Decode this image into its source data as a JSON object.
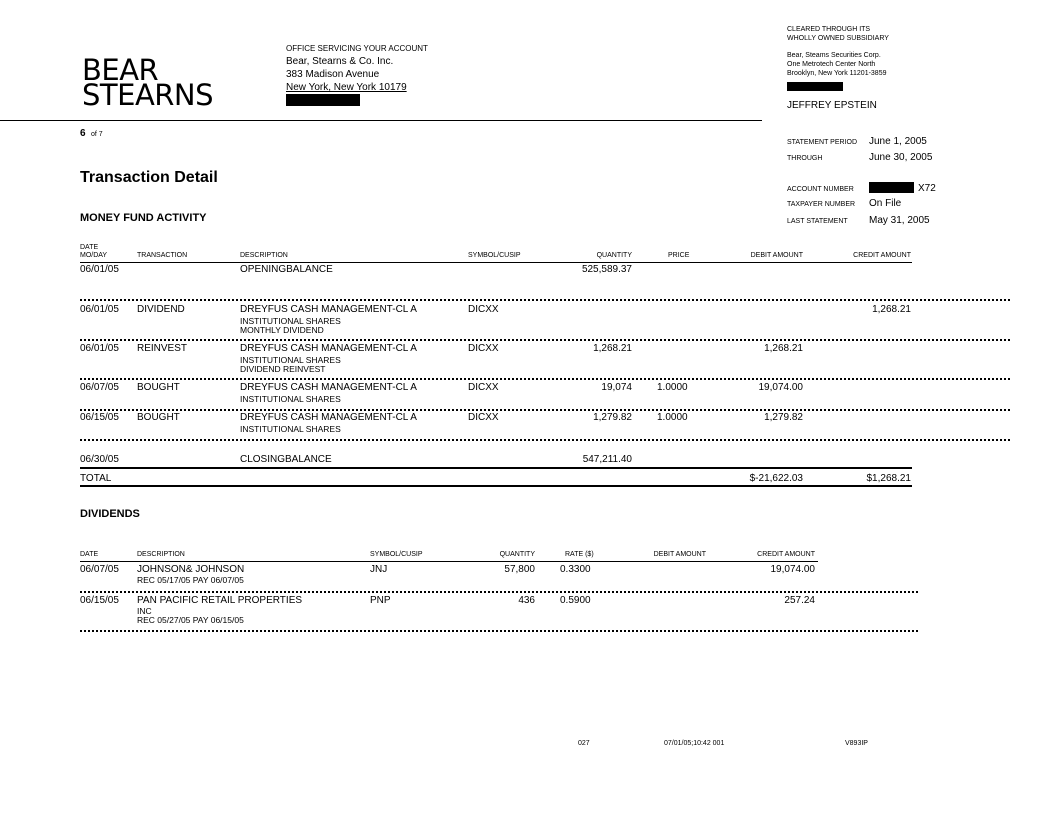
{
  "header": {
    "logo": "BEAR STEARNS",
    "office_title": "OFFICE SERVICING YOUR ACCOUNT",
    "office_lines": [
      "Bear, Stearns & Co. Inc.",
      "383 Madison Avenue",
      "New York, New York  10179"
    ],
    "cleared_lines": [
      "CLEARED  THROUGH  ITS",
      "WHOLLY  OWNED  SUBSIDIARY"
    ],
    "sub_lines": [
      "Bear, Steams Securities Corp.",
      "One Metrotech Center North",
      "Brooklyn,  New York 11201-3859"
    ],
    "client_name": "JEFFREY EPSTEIN",
    "page_num": "6",
    "page_of": "of 7",
    "statement_period_label": "STATEMENT  PERIOD",
    "statement_period": "June 1, 2005",
    "through_label": "THROUGH",
    "through": "June 30, 2005",
    "account_label": "ACCOUNT  NUMBER",
    "account_suffix": "X72",
    "taxpayer_label": "TAXPAYER  NUMBER",
    "taxpayer": "On File",
    "last_statement_label": "LAST  STATEMENT",
    "last_statement": "May 31, 2005"
  },
  "title": "Transaction Detail",
  "money_fund": {
    "heading": "MONEY FUND ACTIVITY",
    "columns": {
      "date_top": "DATE",
      "date": "MO/DAY",
      "transaction": "TRANSACTION",
      "description": "DESCRIPTION",
      "symbol": "SYMBOL/CUSIP",
      "quantity": "QUANTITY",
      "price": "PRICE",
      "debit": "DEBIT AMOUNT",
      "credit": "CREDIT AMOUNT"
    },
    "rows": [
      {
        "date": "06/01/05",
        "transaction": "",
        "description": "OPENINGBALANCE",
        "sub": [],
        "symbol": "",
        "quantity": "525,589.37",
        "price": "",
        "debit": "",
        "credit": ""
      },
      {
        "date": "06/01/05",
        "transaction": "DIVIDEND",
        "description": "DREYFUS CASH MANAGEMENT-CL A",
        "sub": [
          "INSTITUTIONAL SHARES",
          "MONTHLY DIVIDEND"
        ],
        "symbol": "DICXX",
        "quantity": "",
        "price": "",
        "debit": "",
        "credit": "1,268.21"
      },
      {
        "date": "06/01/05",
        "transaction": "REINVEST",
        "description": "DREYFUS CASH MANAGEMENT-CL A",
        "sub": [
          "INSTITUTIONAL SHARES",
          "DIVIDEND REINVEST"
        ],
        "symbol": "DICXX",
        "quantity": "1,268.21",
        "price": "",
        "debit": "1,268.21",
        "credit": ""
      },
      {
        "date": "06/07/05",
        "transaction": "BOUGHT",
        "description": "DREYFUS CASH MANAGEMENT-CL A",
        "sub": [
          "INSTITUTIONAL SHARES"
        ],
        "symbol": "DICXX",
        "quantity": "19,074",
        "price": "1.0000",
        "debit": "19,074.00",
        "credit": ""
      },
      {
        "date": "06/15/05",
        "transaction": "BOUGHT",
        "description": "DREYFUS CASH MANAGEMENT-CL A",
        "sub": [
          "INSTITUTIONAL SHARES"
        ],
        "symbol": "DICXX",
        "quantity": "1,279.82",
        "price": "1.0000",
        "debit": "1,279.82",
        "credit": ""
      },
      {
        "date": "06/30/05",
        "transaction": "",
        "description": "CLOSINGBALANCE",
        "sub": [],
        "symbol": "",
        "quantity": "547,211.40",
        "price": "",
        "debit": "",
        "credit": ""
      }
    ],
    "total": {
      "label": "TOTAL",
      "debit": "$-21,622.03",
      "credit": "$1,268.21"
    }
  },
  "dividends": {
    "heading": "DIVIDENDS",
    "columns": {
      "date": "DATE",
      "description": "DESCRIPTION",
      "symbol": "SYMBOL/CUSIP",
      "quantity": "QUANTITY",
      "rate": "RATE ($)",
      "debit": "DEBIT AMOUNT",
      "credit": "CREDIT AMOUNT"
    },
    "rows": [
      {
        "date": "06/07/05",
        "description": "JOHNSON& JOHNSON",
        "sub": [
          "REC 05/17/05 PAY 06/07/05"
        ],
        "symbol": "JNJ",
        "quantity": "57,800",
        "rate": "0.3300",
        "debit": "",
        "credit": "19,074.00"
      },
      {
        "date": "06/15/05",
        "description": "PAN PACIFIC  RETAIL  PROPERTIES",
        "sub": [
          "INC",
          "REC 05/27/05 PAY 06/15/05"
        ],
        "symbol": "PNP",
        "quantity": "436",
        "rate": "0.5900",
        "debit": "",
        "credit": "257.24"
      }
    ]
  },
  "footer": {
    "code1": "027",
    "timestamp": "07/01/05;10:42  001",
    "code2": "V893IP"
  }
}
